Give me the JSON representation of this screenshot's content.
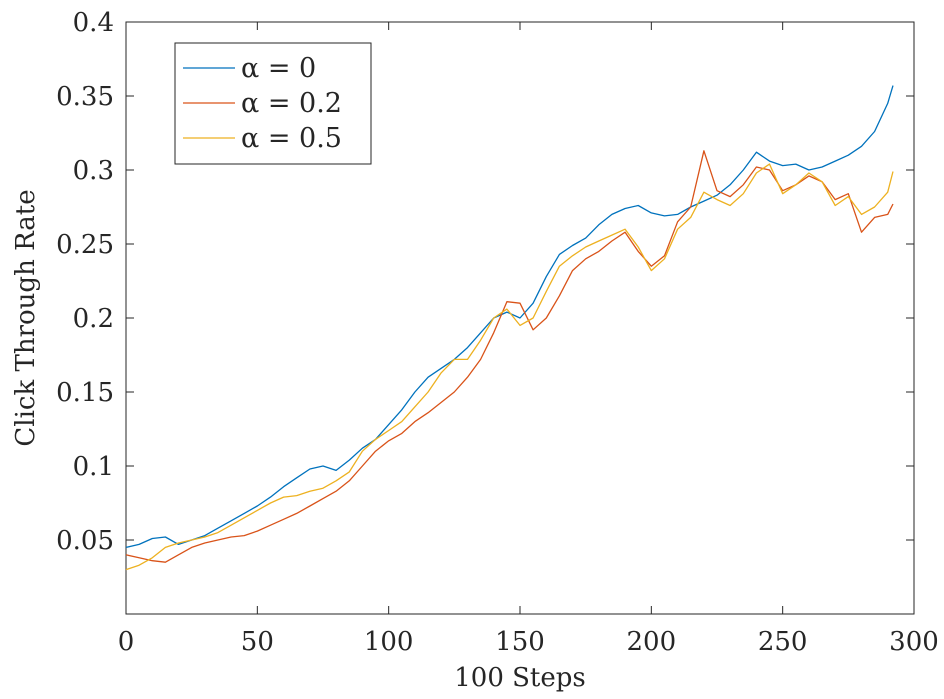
{
  "chart_data": {
    "type": "line",
    "title": "",
    "xlabel": "100 Steps",
    "ylabel": "Click Through Rate",
    "xlim": [
      0,
      300
    ],
    "ylim": [
      0,
      0.4
    ],
    "x_ticks": [
      "0",
      "50",
      "100",
      "150",
      "200",
      "250",
      "300"
    ],
    "y_ticks": [
      "0.05",
      "0.1",
      "0.15",
      "0.2",
      "0.25",
      "0.3",
      "0.35",
      "0.4"
    ],
    "grid": false,
    "legend_position": "top-left",
    "x": [
      0,
      5,
      10,
      15,
      20,
      25,
      30,
      35,
      40,
      45,
      50,
      55,
      60,
      65,
      70,
      75,
      80,
      85,
      90,
      95,
      100,
      105,
      110,
      115,
      120,
      125,
      130,
      135,
      140,
      145,
      150,
      155,
      160,
      165,
      170,
      175,
      180,
      185,
      190,
      195,
      200,
      205,
      210,
      215,
      220,
      225,
      230,
      235,
      240,
      245,
      250,
      255,
      260,
      265,
      270,
      275,
      280,
      285,
      290,
      292
    ],
    "series": [
      {
        "name": "α = 0",
        "color": "#0072BD",
        "values": [
          0.045,
          0.047,
          0.051,
          0.052,
          0.047,
          0.05,
          0.053,
          0.058,
          0.063,
          0.068,
          0.073,
          0.079,
          0.086,
          0.092,
          0.098,
          0.1,
          0.097,
          0.104,
          0.112,
          0.118,
          0.128,
          0.138,
          0.15,
          0.16,
          0.166,
          0.172,
          0.18,
          0.19,
          0.2,
          0.204,
          0.2,
          0.21,
          0.228,
          0.243,
          0.249,
          0.254,
          0.263,
          0.27,
          0.274,
          0.276,
          0.271,
          0.269,
          0.27,
          0.275,
          0.279,
          0.283,
          0.29,
          0.3,
          0.312,
          0.306,
          0.303,
          0.304,
          0.3,
          0.302,
          0.306,
          0.31,
          0.316,
          0.326,
          0.345,
          0.357
        ]
      },
      {
        "name": "α = 0.2",
        "color": "#D95319",
        "values": [
          0.04,
          0.038,
          0.036,
          0.035,
          0.04,
          0.045,
          0.048,
          0.05,
          0.052,
          0.053,
          0.056,
          0.06,
          0.064,
          0.068,
          0.073,
          0.078,
          0.083,
          0.09,
          0.1,
          0.11,
          0.117,
          0.122,
          0.13,
          0.136,
          0.143,
          0.15,
          0.16,
          0.172,
          0.19,
          0.211,
          0.21,
          0.192,
          0.2,
          0.215,
          0.232,
          0.24,
          0.245,
          0.252,
          0.258,
          0.245,
          0.235,
          0.242,
          0.265,
          0.275,
          0.313,
          0.286,
          0.282,
          0.29,
          0.302,
          0.3,
          0.286,
          0.29,
          0.296,
          0.292,
          0.28,
          0.284,
          0.258,
          0.268,
          0.27,
          0.277
        ]
      },
      {
        "name": "α = 0.5",
        "color": "#EDB120",
        "values": [
          0.03,
          0.033,
          0.038,
          0.045,
          0.048,
          0.05,
          0.052,
          0.055,
          0.06,
          0.065,
          0.07,
          0.075,
          0.079,
          0.08,
          0.083,
          0.085,
          0.09,
          0.096,
          0.11,
          0.118,
          0.124,
          0.13,
          0.14,
          0.15,
          0.163,
          0.172,
          0.172,
          0.185,
          0.2,
          0.206,
          0.195,
          0.2,
          0.218,
          0.235,
          0.242,
          0.248,
          0.252,
          0.256,
          0.26,
          0.248,
          0.232,
          0.24,
          0.26,
          0.268,
          0.285,
          0.28,
          0.276,
          0.284,
          0.298,
          0.304,
          0.284,
          0.29,
          0.298,
          0.292,
          0.276,
          0.282,
          0.27,
          0.275,
          0.285,
          0.299
        ]
      }
    ]
  }
}
